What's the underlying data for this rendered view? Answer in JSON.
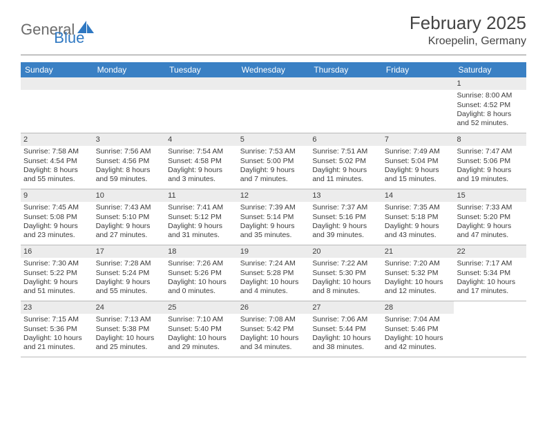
{
  "header": {
    "logo_general": "General",
    "logo_blue": "Blue",
    "title": "February 2025",
    "location": "Kroepelin, Germany",
    "title_fontsize": 26,
    "location_fontsize": 16
  },
  "colors": {
    "header_bar": "#3a80c4",
    "background": "#ffffff",
    "daynum_bg": "#ececec",
    "divider": "#8a8a8a",
    "text": "#3a3a3a",
    "logo_gray": "#6b6b6b",
    "logo_blue": "#2f78c2"
  },
  "day_headers": [
    "Sunday",
    "Monday",
    "Tuesday",
    "Wednesday",
    "Thursday",
    "Friday",
    "Saturday"
  ],
  "weeks": [
    [
      {
        "empty": true
      },
      {
        "empty": true
      },
      {
        "empty": true
      },
      {
        "empty": true
      },
      {
        "empty": true
      },
      {
        "empty": true
      },
      {
        "day": "1",
        "sunrise": "Sunrise: 8:00 AM",
        "sunset": "Sunset: 4:52 PM",
        "daylight1": "Daylight: 8 hours",
        "daylight2": "and 52 minutes."
      }
    ],
    [
      {
        "day": "2",
        "sunrise": "Sunrise: 7:58 AM",
        "sunset": "Sunset: 4:54 PM",
        "daylight1": "Daylight: 8 hours",
        "daylight2": "and 55 minutes."
      },
      {
        "day": "3",
        "sunrise": "Sunrise: 7:56 AM",
        "sunset": "Sunset: 4:56 PM",
        "daylight1": "Daylight: 8 hours",
        "daylight2": "and 59 minutes."
      },
      {
        "day": "4",
        "sunrise": "Sunrise: 7:54 AM",
        "sunset": "Sunset: 4:58 PM",
        "daylight1": "Daylight: 9 hours",
        "daylight2": "and 3 minutes."
      },
      {
        "day": "5",
        "sunrise": "Sunrise: 7:53 AM",
        "sunset": "Sunset: 5:00 PM",
        "daylight1": "Daylight: 9 hours",
        "daylight2": "and 7 minutes."
      },
      {
        "day": "6",
        "sunrise": "Sunrise: 7:51 AM",
        "sunset": "Sunset: 5:02 PM",
        "daylight1": "Daylight: 9 hours",
        "daylight2": "and 11 minutes."
      },
      {
        "day": "7",
        "sunrise": "Sunrise: 7:49 AM",
        "sunset": "Sunset: 5:04 PM",
        "daylight1": "Daylight: 9 hours",
        "daylight2": "and 15 minutes."
      },
      {
        "day": "8",
        "sunrise": "Sunrise: 7:47 AM",
        "sunset": "Sunset: 5:06 PM",
        "daylight1": "Daylight: 9 hours",
        "daylight2": "and 19 minutes."
      }
    ],
    [
      {
        "day": "9",
        "sunrise": "Sunrise: 7:45 AM",
        "sunset": "Sunset: 5:08 PM",
        "daylight1": "Daylight: 9 hours",
        "daylight2": "and 23 minutes."
      },
      {
        "day": "10",
        "sunrise": "Sunrise: 7:43 AM",
        "sunset": "Sunset: 5:10 PM",
        "daylight1": "Daylight: 9 hours",
        "daylight2": "and 27 minutes."
      },
      {
        "day": "11",
        "sunrise": "Sunrise: 7:41 AM",
        "sunset": "Sunset: 5:12 PM",
        "daylight1": "Daylight: 9 hours",
        "daylight2": "and 31 minutes."
      },
      {
        "day": "12",
        "sunrise": "Sunrise: 7:39 AM",
        "sunset": "Sunset: 5:14 PM",
        "daylight1": "Daylight: 9 hours",
        "daylight2": "and 35 minutes."
      },
      {
        "day": "13",
        "sunrise": "Sunrise: 7:37 AM",
        "sunset": "Sunset: 5:16 PM",
        "daylight1": "Daylight: 9 hours",
        "daylight2": "and 39 minutes."
      },
      {
        "day": "14",
        "sunrise": "Sunrise: 7:35 AM",
        "sunset": "Sunset: 5:18 PM",
        "daylight1": "Daylight: 9 hours",
        "daylight2": "and 43 minutes."
      },
      {
        "day": "15",
        "sunrise": "Sunrise: 7:33 AM",
        "sunset": "Sunset: 5:20 PM",
        "daylight1": "Daylight: 9 hours",
        "daylight2": "and 47 minutes."
      }
    ],
    [
      {
        "day": "16",
        "sunrise": "Sunrise: 7:30 AM",
        "sunset": "Sunset: 5:22 PM",
        "daylight1": "Daylight: 9 hours",
        "daylight2": "and 51 minutes."
      },
      {
        "day": "17",
        "sunrise": "Sunrise: 7:28 AM",
        "sunset": "Sunset: 5:24 PM",
        "daylight1": "Daylight: 9 hours",
        "daylight2": "and 55 minutes."
      },
      {
        "day": "18",
        "sunrise": "Sunrise: 7:26 AM",
        "sunset": "Sunset: 5:26 PM",
        "daylight1": "Daylight: 10 hours",
        "daylight2": "and 0 minutes."
      },
      {
        "day": "19",
        "sunrise": "Sunrise: 7:24 AM",
        "sunset": "Sunset: 5:28 PM",
        "daylight1": "Daylight: 10 hours",
        "daylight2": "and 4 minutes."
      },
      {
        "day": "20",
        "sunrise": "Sunrise: 7:22 AM",
        "sunset": "Sunset: 5:30 PM",
        "daylight1": "Daylight: 10 hours",
        "daylight2": "and 8 minutes."
      },
      {
        "day": "21",
        "sunrise": "Sunrise: 7:20 AM",
        "sunset": "Sunset: 5:32 PM",
        "daylight1": "Daylight: 10 hours",
        "daylight2": "and 12 minutes."
      },
      {
        "day": "22",
        "sunrise": "Sunrise: 7:17 AM",
        "sunset": "Sunset: 5:34 PM",
        "daylight1": "Daylight: 10 hours",
        "daylight2": "and 17 minutes."
      }
    ],
    [
      {
        "day": "23",
        "sunrise": "Sunrise: 7:15 AM",
        "sunset": "Sunset: 5:36 PM",
        "daylight1": "Daylight: 10 hours",
        "daylight2": "and 21 minutes."
      },
      {
        "day": "24",
        "sunrise": "Sunrise: 7:13 AM",
        "sunset": "Sunset: 5:38 PM",
        "daylight1": "Daylight: 10 hours",
        "daylight2": "and 25 minutes."
      },
      {
        "day": "25",
        "sunrise": "Sunrise: 7:10 AM",
        "sunset": "Sunset: 5:40 PM",
        "daylight1": "Daylight: 10 hours",
        "daylight2": "and 29 minutes."
      },
      {
        "day": "26",
        "sunrise": "Sunrise: 7:08 AM",
        "sunset": "Sunset: 5:42 PM",
        "daylight1": "Daylight: 10 hours",
        "daylight2": "and 34 minutes."
      },
      {
        "day": "27",
        "sunrise": "Sunrise: 7:06 AM",
        "sunset": "Sunset: 5:44 PM",
        "daylight1": "Daylight: 10 hours",
        "daylight2": "and 38 minutes."
      },
      {
        "day": "28",
        "sunrise": "Sunrise: 7:04 AM",
        "sunset": "Sunset: 5:46 PM",
        "daylight1": "Daylight: 10 hours",
        "daylight2": "and 42 minutes."
      },
      {
        "empty": true,
        "plain": true
      }
    ]
  ]
}
